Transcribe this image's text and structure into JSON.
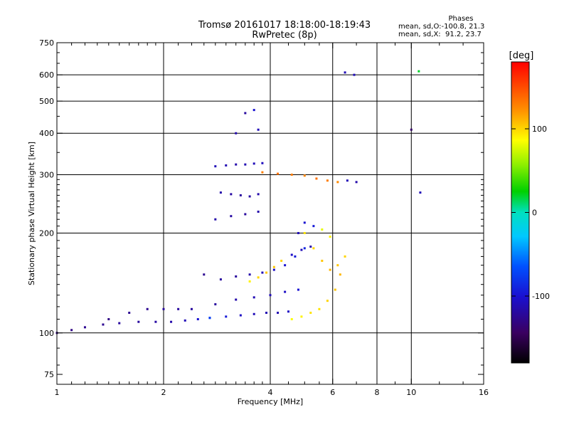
{
  "title_line1": "Tromsø 20161017 18:18:00-18:19:43",
  "title_line2": "RwPretec (8p)",
  "stats": {
    "header": "Phases",
    "line_o": "mean, sd,O:-100.8, 21.3",
    "line_x": "mean, sd,X:  91.2, 23.7"
  },
  "chart_data": {
    "type": "scatter",
    "xlabel": "Frequency [MHz]",
    "ylabel": "Stationary phase Virtual Height [km]",
    "x_scale": "log",
    "y_scale": "log",
    "xlim": [
      1,
      16
    ],
    "ylim": [
      70,
      750
    ],
    "x_ticks": [
      1,
      2,
      4,
      6,
      8,
      10,
      16
    ],
    "x_minor_ticks": [
      1.1,
      1.2,
      1.3,
      1.4,
      1.5,
      1.6,
      1.7,
      1.8,
      1.9,
      2.2,
      2.4,
      2.6,
      2.8,
      3,
      3.2,
      3.4,
      3.6,
      3.8,
      4.5,
      5,
      5.5,
      7,
      9,
      12,
      14
    ],
    "x_grid_lines": [
      2,
      4,
      6,
      8,
      10
    ],
    "y_ticks": [
      75,
      100,
      200,
      300,
      400,
      500,
      600,
      750
    ],
    "y_grid_lines": [
      100,
      200,
      300,
      400,
      500,
      600
    ],
    "grid": true,
    "colorbar": {
      "label": "[deg]",
      "range": [
        -180,
        180
      ],
      "ticks": [
        100,
        0,
        -100
      ],
      "colormap": "rainbow"
    },
    "series": [
      {
        "x": [
          1.0,
          1.1,
          1.2,
          1.35,
          1.5,
          1.7,
          1.9,
          2.1,
          2.3,
          2.5,
          2.7
        ],
        "y": [
          100,
          102,
          104,
          106,
          107,
          108,
          108,
          108,
          109,
          110,
          111
        ],
        "phase": [
          -130,
          -130,
          -125,
          -125,
          -120,
          -120,
          -118,
          -115,
          -110,
          -100,
          -75
        ]
      },
      {
        "x": [
          2.7,
          3.0,
          3.3,
          3.6,
          3.9,
          4.2,
          4.5
        ],
        "y": [
          111,
          112,
          113,
          114,
          115,
          115,
          116
        ],
        "phase": [
          -75,
          -95,
          -105,
          -110,
          -112,
          -112,
          -105
        ]
      },
      {
        "x": [
          4.6,
          4.9,
          5.2,
          5.5,
          5.8,
          6.1,
          6.3
        ],
        "y": [
          110,
          112,
          115,
          118,
          125,
          135,
          150
        ],
        "phase": [
          85,
          90,
          95,
          95,
          100,
          105,
          110
        ]
      },
      {
        "x": [
          1.4,
          1.6,
          1.8,
          2.0,
          2.2
        ],
        "y": [
          110,
          115,
          118,
          118,
          118
        ],
        "phase": [
          -130,
          -125,
          -125,
          -120,
          -120
        ]
      },
      {
        "x": [
          2.4,
          2.8,
          3.2,
          3.6,
          4.0,
          4.4,
          4.8
        ],
        "y": [
          118,
          122,
          126,
          128,
          130,
          133,
          135
        ],
        "phase": [
          -120,
          -120,
          -115,
          -112,
          -110,
          -105,
          -100
        ]
      },
      {
        "x": [
          2.6,
          2.9,
          3.2,
          3.5,
          3.8,
          4.1,
          4.4,
          4.7,
          5.0
        ],
        "y": [
          150,
          145,
          148,
          150,
          152,
          155,
          160,
          170,
          180
        ],
        "phase": [
          -125,
          -120,
          -120,
          -115,
          -110,
          -105,
          -100,
          -95,
          -90
        ]
      },
      {
        "x": [
          3.5,
          3.7,
          3.9,
          4.1,
          4.3,
          4.6,
          4.9,
          5.2
        ],
        "y": [
          143,
          147,
          152,
          158,
          165,
          172,
          178,
          182
        ],
        "phase": [
          90,
          100,
          105,
          105,
          100,
          -105,
          -110,
          -115
        ]
      },
      {
        "x": [
          5.0,
          5.3,
          5.6,
          5.9,
          6.2,
          6.5
        ],
        "y": [
          200,
          180,
          165,
          155,
          160,
          170
        ],
        "phase": [
          95,
          100,
          105,
          110,
          105,
          100
        ]
      },
      {
        "x": [
          4.8,
          5.0,
          5.3,
          5.6,
          5.9
        ],
        "y": [
          200,
          215,
          210,
          205,
          195
        ],
        "phase": [
          -110,
          -100,
          -95,
          80,
          90
        ]
      },
      {
        "x": [
          2.8,
          3.0,
          3.2,
          3.4,
          3.6,
          3.8
        ],
        "y": [
          318,
          320,
          322,
          322,
          324,
          325
        ],
        "phase": [
          -110,
          -112,
          -115,
          -112,
          -110,
          -108
        ]
      },
      {
        "x": [
          2.9,
          3.1,
          3.3,
          3.5,
          3.7
        ],
        "y": [
          265,
          262,
          260,
          258,
          262
        ],
        "phase": [
          -115,
          -118,
          -120,
          -118,
          -115
        ]
      },
      {
        "x": [
          3.8,
          4.2,
          4.6,
          5.0,
          5.4,
          5.8,
          6.2,
          6.6,
          7.0
        ],
        "y": [
          305,
          302,
          300,
          298,
          292,
          288,
          285,
          288,
          285
        ],
        "phase": [
          130,
          135,
          130,
          125,
          135,
          130,
          125,
          -110,
          -115
        ]
      },
      {
        "x": [
          2.8,
          3.1,
          3.4,
          3.7
        ],
        "y": [
          220,
          225,
          228,
          232
        ],
        "phase": [
          -115,
          -118,
          -120,
          -115
        ]
      },
      {
        "x": [
          6.5,
          6.9,
          10.5,
          10.0
        ],
        "y": [
          610,
          600,
          615,
          410
        ],
        "phase": [
          -110,
          -110,
          20,
          -140
        ]
      },
      {
        "x": [
          3.2,
          3.4,
          3.6,
          3.7,
          10.6
        ],
        "y": [
          400,
          460,
          470,
          410,
          265
        ],
        "phase": [
          -115,
          -120,
          -100,
          -110,
          -110
        ]
      }
    ]
  }
}
